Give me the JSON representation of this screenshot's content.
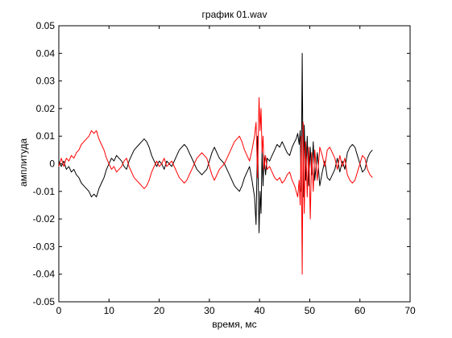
{
  "chart_data": {
    "type": "line",
    "title": "график 01.wav",
    "xlabel": "время, мс",
    "ylabel": "амплитуда",
    "xlim": [
      0,
      70
    ],
    "ylim": [
      -0.05,
      0.05
    ],
    "x_ticks": [
      0,
      10,
      20,
      30,
      40,
      50,
      60,
      70
    ],
    "y_ticks": [
      0.05,
      0.04,
      0.03,
      0.02,
      0.01,
      0,
      -0.01,
      -0.02,
      -0.03,
      -0.04,
      -0.05
    ],
    "x_tick_labels": [
      "0",
      "10",
      "20",
      "30",
      "40",
      "50",
      "60",
      "70"
    ],
    "y_tick_labels": [
      "0.05",
      "0.04",
      "0.03",
      "0.02",
      "0.01",
      "0",
      "-0.01",
      "-0.02",
      "-0.03",
      "-0.04",
      "-0.05"
    ],
    "grid": false,
    "series": [
      {
        "color": "#000000",
        "x": [
          0,
          0.5,
          1,
          1.5,
          2,
          2.5,
          3,
          3.5,
          4,
          4.5,
          5,
          5.5,
          6,
          6.5,
          7,
          7.5,
          8,
          8.5,
          9,
          9.5,
          10,
          10.5,
          11,
          11.5,
          12,
          12.5,
          13,
          13.5,
          14,
          14.5,
          15,
          15.5,
          16,
          16.5,
          17,
          17.5,
          18,
          18.5,
          19,
          19.5,
          20,
          20.5,
          21,
          21.5,
          22,
          22.5,
          23,
          23.5,
          24,
          24.5,
          25,
          25.5,
          26,
          26.5,
          27,
          27.5,
          28,
          28.5,
          29,
          29.5,
          30,
          30.5,
          31,
          31.5,
          32,
          32.5,
          33,
          33.5,
          34,
          34.5,
          35,
          35.5,
          36,
          36.5,
          37,
          37.5,
          38,
          38.5,
          39,
          39.3,
          39.6,
          39.9,
          40.1,
          40.3,
          40.5,
          40.7,
          40.9,
          41.2,
          41.5,
          42,
          42.5,
          43,
          43.5,
          44,
          44.5,
          45,
          45.5,
          46,
          46.5,
          47,
          47.3,
          47.6,
          47.9,
          48.1,
          48.3,
          48.5,
          48.7,
          48.9,
          49.2,
          49.5,
          49.8,
          50.1,
          50.4,
          50.7,
          51,
          51.5,
          52,
          52.5,
          53,
          53.5,
          54,
          54.5,
          55,
          55.5,
          56,
          56.5,
          57,
          57.5,
          58,
          58.5,
          59,
          59.5,
          60,
          60.5,
          61,
          61.5,
          62,
          62.5
        ],
        "y": [
          0.001,
          -0.001,
          0.001,
          -0.002,
          -0.001,
          -0.003,
          -0.002,
          -0.004,
          -0.005,
          -0.007,
          -0.008,
          -0.009,
          -0.01,
          -0.012,
          -0.011,
          -0.012,
          -0.009,
          -0.007,
          -0.005,
          -0.002,
          0,
          0.002,
          0.001,
          0.003,
          0.002,
          0.001,
          -0.001,
          -0.002,
          0.001,
          0.003,
          0.005,
          0.006,
          0.007,
          0.008,
          0.009,
          0.008,
          0.006,
          0.003,
          0.001,
          -0.001,
          0.001,
          0,
          -0.002,
          0.001,
          0,
          -0.001,
          0.001,
          0.003,
          0.005,
          0.006,
          0.007,
          0.006,
          0.004,
          0.002,
          0,
          -0.002,
          -0.003,
          -0.004,
          -0.003,
          -0.002,
          0.001,
          0.004,
          0.006,
          0.004,
          0.002,
          0.001,
          0,
          -0.002,
          -0.004,
          -0.006,
          -0.008,
          -0.009,
          -0.01,
          -0.008,
          -0.005,
          -0.003,
          -0.001,
          -0.006,
          -0.012,
          -0.022,
          0.01,
          -0.025,
          -0.01,
          -0.018,
          0.005,
          -0.008,
          0.003,
          -0.004,
          0.002,
          0.001,
          0.003,
          0.005,
          0.007,
          0.006,
          0.008,
          0.006,
          0.004,
          0.003,
          0.006,
          0.008,
          0.009,
          0.011,
          0.007,
          0.012,
          -0.01,
          0.04,
          -0.012,
          0.014,
          -0.006,
          0.01,
          -0.008,
          0.006,
          -0.004,
          0.008,
          -0.006,
          0.004,
          -0.008,
          -0.003,
          0.001,
          -0.005,
          -0.006,
          -0.004,
          -0.002,
          0.002,
          -0.003,
          0.001,
          -0.002,
          0.004,
          0.006,
          0.007,
          0.006,
          0.003,
          0,
          -0.003,
          -0.002,
          0.002,
          0.004,
          0.005
        ]
      },
      {
        "color": "#ff0000",
        "x": [
          0,
          0.5,
          1,
          1.5,
          2,
          2.5,
          3,
          3.5,
          4,
          4.5,
          5,
          5.5,
          6,
          6.5,
          7,
          7.5,
          8,
          8.5,
          9,
          9.5,
          10,
          10.5,
          11,
          11.5,
          12,
          12.5,
          13,
          13.5,
          14,
          14.5,
          15,
          15.5,
          16,
          16.5,
          17,
          17.5,
          18,
          18.5,
          19,
          19.5,
          20,
          20.5,
          21,
          21.5,
          22,
          22.5,
          23,
          23.5,
          24,
          24.5,
          25,
          25.5,
          26,
          26.5,
          27,
          27.5,
          28,
          28.5,
          29,
          29.5,
          30,
          30.5,
          31,
          31.5,
          32,
          32.5,
          33,
          33.5,
          34,
          34.5,
          35,
          35.5,
          36,
          36.5,
          37,
          37.5,
          38,
          38.5,
          39,
          39.3,
          39.6,
          39.9,
          40.1,
          40.3,
          40.5,
          40.7,
          40.9,
          41.2,
          41.5,
          42,
          42.5,
          43,
          43.5,
          44,
          44.5,
          45,
          45.5,
          46,
          46.5,
          47,
          47.3,
          47.6,
          47.9,
          48.1,
          48.3,
          48.5,
          48.7,
          48.9,
          49.2,
          49.5,
          49.8,
          50.1,
          50.4,
          50.7,
          51,
          51.5,
          52,
          52.5,
          53,
          53.5,
          54,
          54.5,
          55,
          55.5,
          56,
          56.5,
          57,
          57.5,
          58,
          58.5,
          59,
          59.5,
          60,
          60.5,
          61,
          61.5,
          62,
          62.5
        ],
        "y": [
          -0.001,
          0.002,
          -0.001,
          0.002,
          0.001,
          0.003,
          0.002,
          0.004,
          0.005,
          0.007,
          0.008,
          0.009,
          0.01,
          0.012,
          0.011,
          0.012,
          0.009,
          0.007,
          0.005,
          0.002,
          0,
          -0.002,
          -0.001,
          -0.003,
          -0.002,
          -0.001,
          0.001,
          0.002,
          -0.001,
          -0.003,
          -0.005,
          -0.006,
          -0.007,
          -0.008,
          -0.009,
          -0.008,
          -0.006,
          -0.003,
          -0.001,
          0.001,
          -0.001,
          0,
          0.002,
          -0.001,
          0,
          0.001,
          -0.001,
          -0.003,
          -0.005,
          -0.006,
          -0.007,
          -0.006,
          -0.004,
          -0.002,
          0,
          0.002,
          0.003,
          0.004,
          0.003,
          0.002,
          -0.001,
          -0.004,
          -0.006,
          -0.004,
          -0.002,
          -0.001,
          0,
          0.002,
          0.004,
          0.006,
          0.008,
          0.009,
          0.01,
          0.008,
          0.005,
          0.003,
          0.001,
          0.005,
          0.01,
          0.015,
          -0.005,
          0.024,
          0.012,
          0.02,
          0.004,
          0.01,
          -0.002,
          0.003,
          -0.002,
          -0.001,
          -0.003,
          -0.005,
          -0.006,
          -0.005,
          -0.007,
          -0.006,
          -0.004,
          -0.003,
          -0.006,
          -0.008,
          -0.01,
          -0.012,
          -0.006,
          -0.015,
          0.01,
          -0.04,
          0.015,
          -0.018,
          0.008,
          -0.012,
          0.006,
          -0.02,
          0.004,
          -0.01,
          0.005,
          -0.006,
          0.006,
          0.003,
          -0.001,
          0.005,
          0.006,
          0.004,
          0.002,
          -0.002,
          0.003,
          -0.001,
          0.002,
          -0.004,
          -0.006,
          -0.007,
          -0.006,
          -0.003,
          0,
          0.003,
          0.002,
          -0.002,
          -0.004,
          -0.005
        ]
      }
    ]
  }
}
